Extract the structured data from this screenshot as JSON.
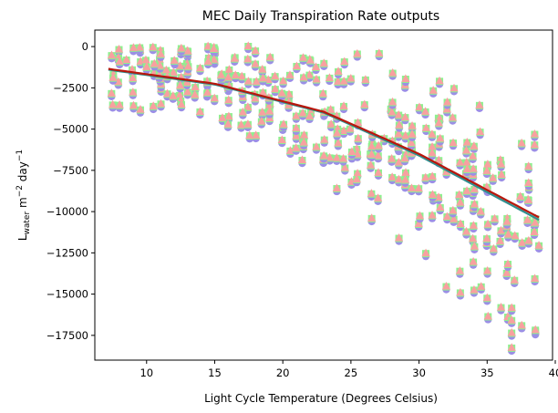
{
  "chart_data": {
    "type": "scatter",
    "title": "MEC Daily Transpiration Rate outputs",
    "xlabel": "Light Cycle Temperature (Degrees Celsius)",
    "ylabel_parts": [
      "L",
      "water",
      " m",
      "−2",
      " day",
      "−1"
    ],
    "xlim": [
      6.2,
      39.8
    ],
    "ylim": [
      -19000,
      1000
    ],
    "xticks": [
      10,
      15,
      20,
      25,
      30,
      35,
      40
    ],
    "yticks": [
      0,
      -2500,
      -5000,
      -7500,
      -10000,
      -12500,
      -15000,
      -17500
    ],
    "ytick_labels": [
      "0",
      "−2500",
      "−5000",
      "−7500",
      "−10000",
      "−12500",
      "−15000",
      "−17500"
    ],
    "grid": false,
    "series": [
      {
        "marker": "circle",
        "color": "#9b8fe6"
      },
      {
        "marker": "square",
        "color": "#8ff08f"
      },
      {
        "marker": "triangle",
        "color": "#f8a0a0"
      }
    ],
    "fit_lines": [
      {
        "color": "#2f8f8f",
        "x": [
          7.2,
          15,
          23,
          30,
          38.8
        ],
        "y": [
          -1400,
          -2300,
          -4000,
          -6600,
          -10500
        ]
      },
      {
        "color": "#b8170c",
        "x": [
          7.2,
          15,
          23,
          30,
          38.8
        ],
        "y": [
          -1350,
          -2250,
          -3950,
          -6500,
          -10350
        ]
      }
    ]
  }
}
